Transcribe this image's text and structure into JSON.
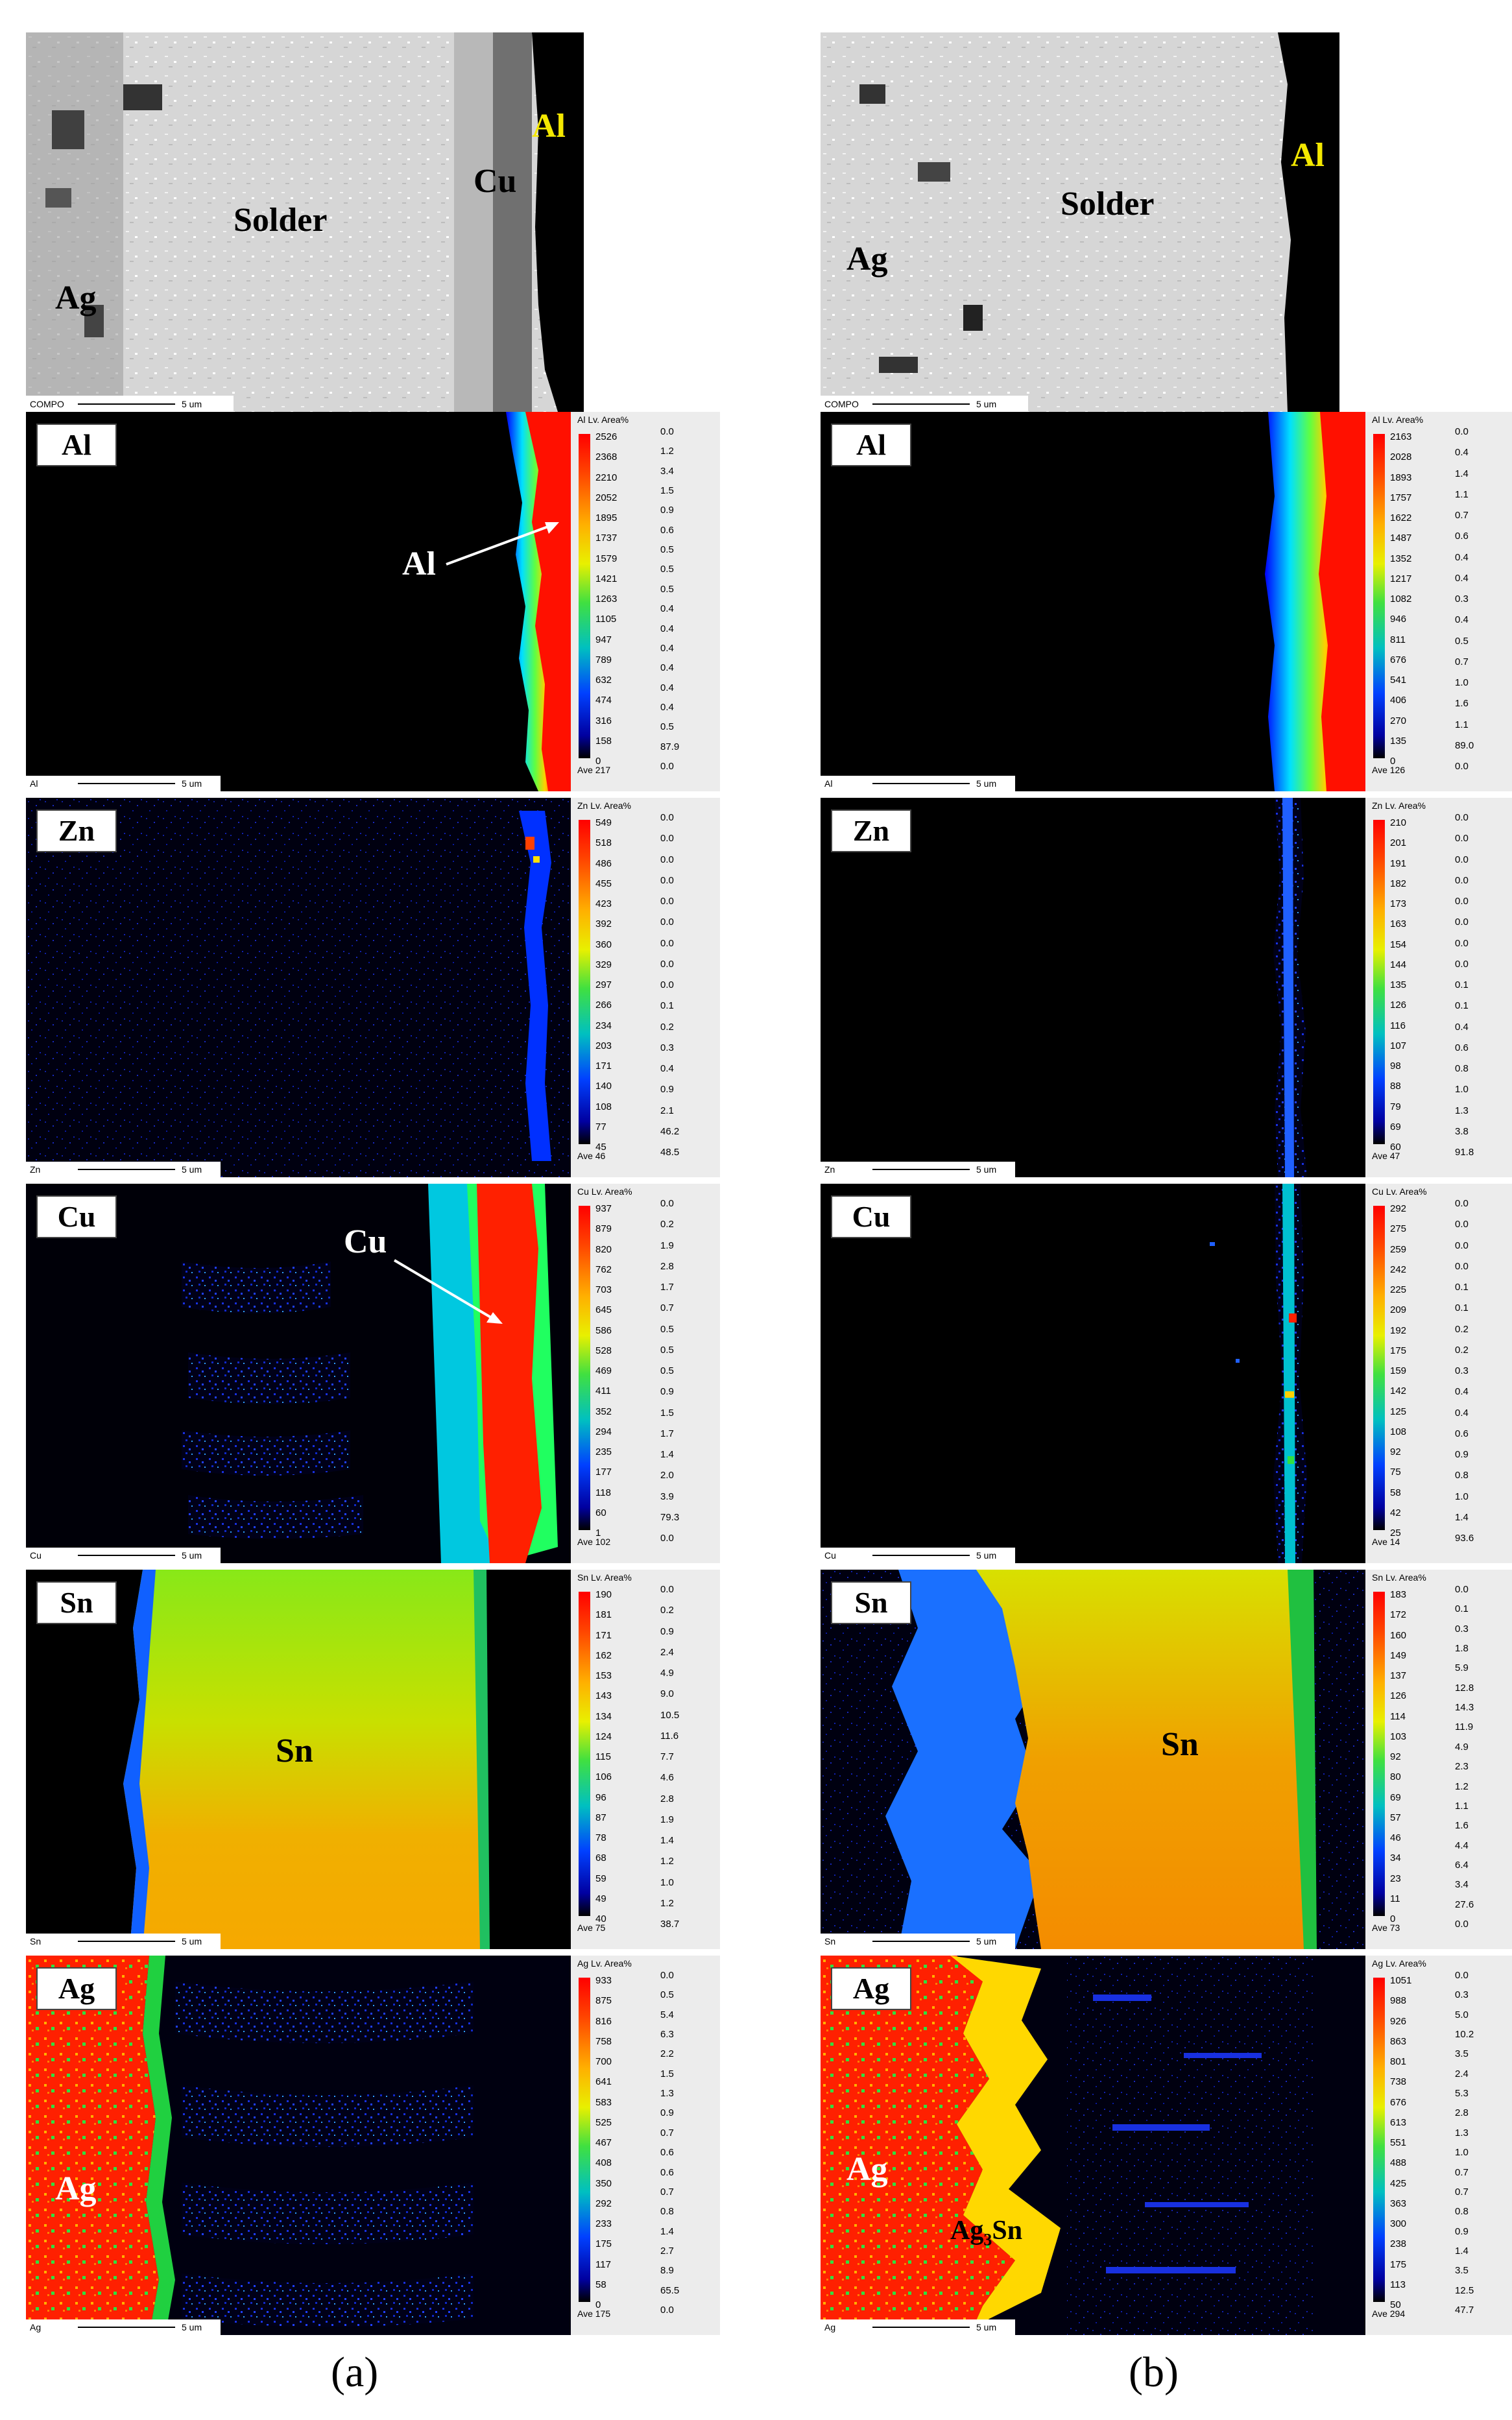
{
  "figure": {
    "captions": [
      "(a)",
      "(b)"
    ],
    "scale_text": "5 um"
  },
  "columns": [
    {
      "compo": {
        "name": "COMPO",
        "labels": {
          "solder": "Solder",
          "cu": "Cu",
          "al": "Al",
          "ag": "Ag"
        }
      },
      "maps": [
        {
          "element": "Al",
          "map_name": "Al",
          "legend_header": "Al Lv. Area%",
          "ave": "Ave 217",
          "levels": [
            "2526",
            "2368",
            "2210",
            "2052",
            "1895",
            "1737",
            "1579",
            "1421",
            "1263",
            "1105",
            "947",
            "789",
            "632",
            "474",
            "316",
            "158",
            "0"
          ],
          "areas": [
            "0.0",
            "1.2",
            "3.4",
            "1.5",
            "0.9",
            "0.6",
            "0.5",
            "0.5",
            "0.5",
            "0.4",
            "0.4",
            "0.4",
            "0.4",
            "0.4",
            "0.4",
            "0.5",
            "87.9",
            "0.0"
          ],
          "annotation": "Al"
        },
        {
          "element": "Zn",
          "map_name": "Zn",
          "legend_header": "Zn Lv. Area%",
          "ave": "Ave 46",
          "levels": [
            "549",
            "518",
            "486",
            "455",
            "423",
            "392",
            "360",
            "329",
            "297",
            "266",
            "234",
            "203",
            "171",
            "140",
            "108",
            "77",
            "45"
          ],
          "areas": [
            "0.0",
            "0.0",
            "0.0",
            "0.0",
            "0.0",
            "0.0",
            "0.0",
            "0.0",
            "0.0",
            "0.1",
            "0.2",
            "0.3",
            "0.4",
            "0.9",
            "2.1",
            "46.2",
            "48.5"
          ],
          "annotation": ""
        },
        {
          "element": "Cu",
          "map_name": "Cu",
          "legend_header": "Cu Lv. Area%",
          "ave": "Ave 102",
          "levels": [
            "937",
            "879",
            "820",
            "762",
            "703",
            "645",
            "586",
            "528",
            "469",
            "411",
            "352",
            "294",
            "235",
            "177",
            "118",
            "60",
            "1"
          ],
          "areas": [
            "0.0",
            "0.2",
            "1.9",
            "2.8",
            "1.7",
            "0.7",
            "0.5",
            "0.5",
            "0.5",
            "0.9",
            "1.5",
            "1.7",
            "1.4",
            "2.0",
            "3.9",
            "79.3",
            "0.0"
          ],
          "annotation": "Cu"
        },
        {
          "element": "Sn",
          "map_name": "Sn",
          "legend_header": "Sn Lv. Area%",
          "ave": "Ave 75",
          "levels": [
            "190",
            "181",
            "171",
            "162",
            "153",
            "143",
            "134",
            "124",
            "115",
            "106",
            "96",
            "87",
            "78",
            "68",
            "59",
            "49",
            "40"
          ],
          "areas": [
            "0.0",
            "0.2",
            "0.9",
            "2.4",
            "4.9",
            "9.0",
            "10.5",
            "11.6",
            "7.7",
            "4.6",
            "2.8",
            "1.9",
            "1.4",
            "1.2",
            "1.0",
            "1.2",
            "38.7"
          ],
          "annotation": "Sn"
        },
        {
          "element": "Ag",
          "map_name": "Ag",
          "legend_header": "Ag Lv. Area%",
          "ave": "Ave 175",
          "levels": [
            "933",
            "875",
            "816",
            "758",
            "700",
            "641",
            "583",
            "525",
            "467",
            "408",
            "350",
            "292",
            "233",
            "175",
            "117",
            "58",
            "0"
          ],
          "areas": [
            "0.0",
            "0.5",
            "5.4",
            "6.3",
            "2.2",
            "1.5",
            "1.3",
            "0.9",
            "0.7",
            "0.6",
            "0.6",
            "0.7",
            "0.8",
            "1.4",
            "2.7",
            "8.9",
            "65.5",
            "0.0"
          ],
          "annotation": "Ag"
        }
      ]
    },
    {
      "compo": {
        "name": "COMPO",
        "labels": {
          "solder": "Solder",
          "al": "Al",
          "ag": "Ag"
        }
      },
      "maps": [
        {
          "element": "Al",
          "map_name": "Al",
          "legend_header": "Al Lv. Area%",
          "ave": "Ave 126",
          "levels": [
            "2163",
            "2028",
            "1893",
            "1757",
            "1622",
            "1487",
            "1352",
            "1217",
            "1082",
            "946",
            "811",
            "676",
            "541",
            "406",
            "270",
            "135",
            "0"
          ],
          "areas": [
            "0.0",
            "0.4",
            "1.4",
            "1.1",
            "0.7",
            "0.6",
            "0.4",
            "0.4",
            "0.3",
            "0.4",
            "0.5",
            "0.7",
            "1.0",
            "1.6",
            "1.1",
            "89.0",
            "0.0"
          ],
          "annotation": ""
        },
        {
          "element": "Zn",
          "map_name": "Zn",
          "legend_header": "Zn Lv. Area%",
          "ave": "Ave 47",
          "levels": [
            "210",
            "201",
            "191",
            "182",
            "173",
            "163",
            "154",
            "144",
            "135",
            "126",
            "116",
            "107",
            "98",
            "88",
            "79",
            "69",
            "60"
          ],
          "areas": [
            "0.0",
            "0.0",
            "0.0",
            "0.0",
            "0.0",
            "0.0",
            "0.0",
            "0.0",
            "0.1",
            "0.1",
            "0.4",
            "0.6",
            "0.8",
            "1.0",
            "1.3",
            "3.8",
            "91.8"
          ],
          "annotation": ""
        },
        {
          "element": "Cu",
          "map_name": "Cu",
          "legend_header": "Cu Lv. Area%",
          "ave": "Ave 14",
          "levels": [
            "292",
            "275",
            "259",
            "242",
            "225",
            "209",
            "192",
            "175",
            "159",
            "142",
            "125",
            "108",
            "92",
            "75",
            "58",
            "42",
            "25"
          ],
          "areas": [
            "0.0",
            "0.0",
            "0.0",
            "0.0",
            "0.1",
            "0.1",
            "0.2",
            "0.2",
            "0.3",
            "0.4",
            "0.4",
            "0.6",
            "0.9",
            "0.8",
            "1.0",
            "1.4",
            "93.6"
          ],
          "annotation": ""
        },
        {
          "element": "Sn",
          "map_name": "Sn",
          "legend_header": "Sn Lv. Area%",
          "ave": "Ave 73",
          "levels": [
            "183",
            "172",
            "160",
            "149",
            "137",
            "126",
            "114",
            "103",
            "92",
            "80",
            "69",
            "57",
            "46",
            "34",
            "23",
            "11",
            "0"
          ],
          "areas": [
            "0.0",
            "0.1",
            "0.3",
            "1.8",
            "5.9",
            "12.8",
            "14.3",
            "11.9",
            "4.9",
            "2.3",
            "1.2",
            "1.1",
            "1.6",
            "4.4",
            "6.4",
            "3.4",
            "27.6",
            "0.0"
          ],
          "annotation": "Sn"
        },
        {
          "element": "Ag",
          "map_name": "Ag",
          "legend_header": "Ag Lv. Area%",
          "ave": "Ave 294",
          "levels": [
            "1051",
            "988",
            "926",
            "863",
            "801",
            "738",
            "676",
            "613",
            "551",
            "488",
            "425",
            "363",
            "300",
            "238",
            "175",
            "113",
            "50"
          ],
          "areas": [
            "0.0",
            "0.3",
            "5.0",
            "10.2",
            "3.5",
            "2.4",
            "5.3",
            "2.8",
            "1.3",
            "1.0",
            "0.7",
            "0.7",
            "0.8",
            "0.9",
            "1.4",
            "3.5",
            "12.5",
            "47.7"
          ],
          "annotation": "Ag",
          "annotation2_main": "Ag",
          "annotation2_sub": "3",
          "annotation2_tail": "Sn"
        }
      ]
    }
  ],
  "colors": {
    "map_bg": "#000000",
    "colorbar": [
      "#ff0000",
      "#ff5a00",
      "#ffa000",
      "#ffe000",
      "#b8ff00",
      "#30e030",
      "#00c8c8",
      "#0050ff",
      "#0000a0",
      "#000000"
    ]
  }
}
